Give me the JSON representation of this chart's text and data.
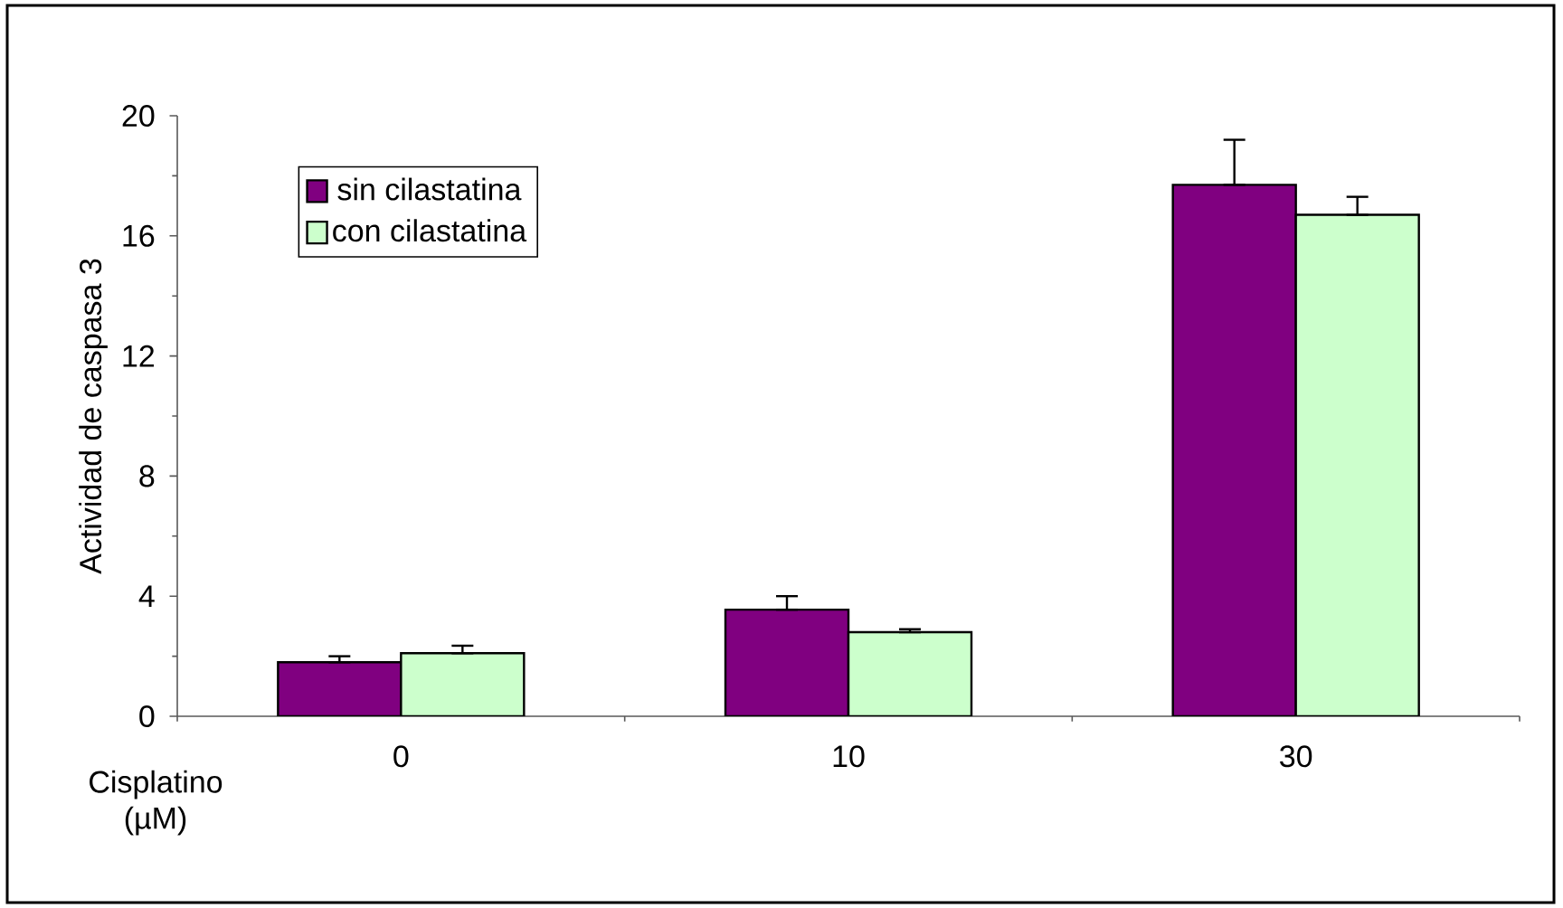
{
  "chart_data": {
    "type": "bar",
    "xlabel": "Cisplatino (µM)",
    "ylabel": "Actividad de caspasa 3",
    "categories": [
      "0",
      "10",
      "30"
    ],
    "series": [
      {
        "name": "sin cilastatina",
        "color": "#800080",
        "values": [
          1.8,
          3.55,
          17.7
        ],
        "errors": [
          [
            1.8,
            2.0
          ],
          [
            3.55,
            4.0
          ],
          [
            17.7,
            19.2
          ]
        ]
      },
      {
        "name": "con cilastatina",
        "color": "#ccffcc",
        "values": [
          2.1,
          2.8,
          16.7
        ],
        "errors": [
          [
            2.1,
            2.35
          ],
          [
            2.8,
            2.9
          ],
          [
            16.7,
            17.3
          ]
        ]
      }
    ],
    "ylim": [
      0,
      20
    ],
    "yticks": [
      0,
      4,
      8,
      12,
      16,
      20
    ],
    "grid": false,
    "legend": "top left"
  }
}
